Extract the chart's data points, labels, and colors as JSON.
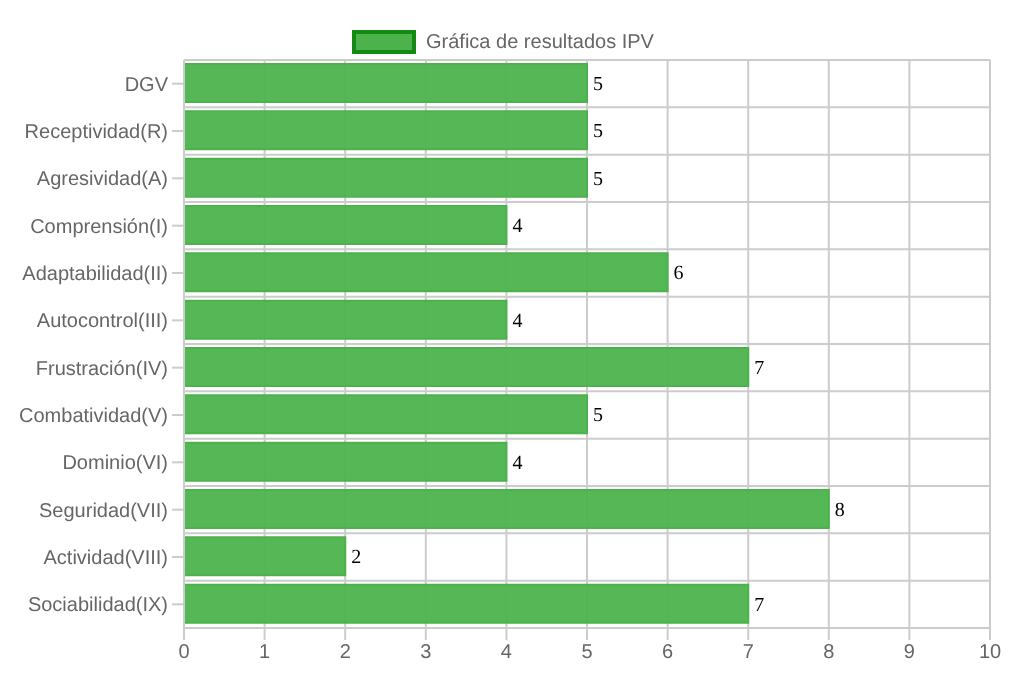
{
  "chart_data": {
    "type": "bar",
    "orientation": "horizontal",
    "categories": [
      "DGV",
      "Receptividad(R)",
      "Agresividad(A)",
      "Comprensión(I)",
      "Adaptabilidad(II)",
      "Autocontrol(III)",
      "Frustración(IV)",
      "Combatividad(V)",
      "Dominio(VI)",
      "Seguridad(VII)",
      "Actividad(VIII)",
      "Sociabilidad(IX)"
    ],
    "series": [
      {
        "name": "Gráfica de resultados IPV",
        "color": "#4cb34c",
        "values": [
          5,
          5,
          5,
          4,
          6,
          4,
          7,
          5,
          4,
          8,
          2,
          7
        ]
      }
    ],
    "xlim": [
      0,
      10
    ],
    "xticks": [
      0,
      1,
      2,
      3,
      4,
      5,
      6,
      7,
      8,
      9,
      10
    ],
    "grid": true,
    "legend": "top",
    "data_labels": true
  }
}
